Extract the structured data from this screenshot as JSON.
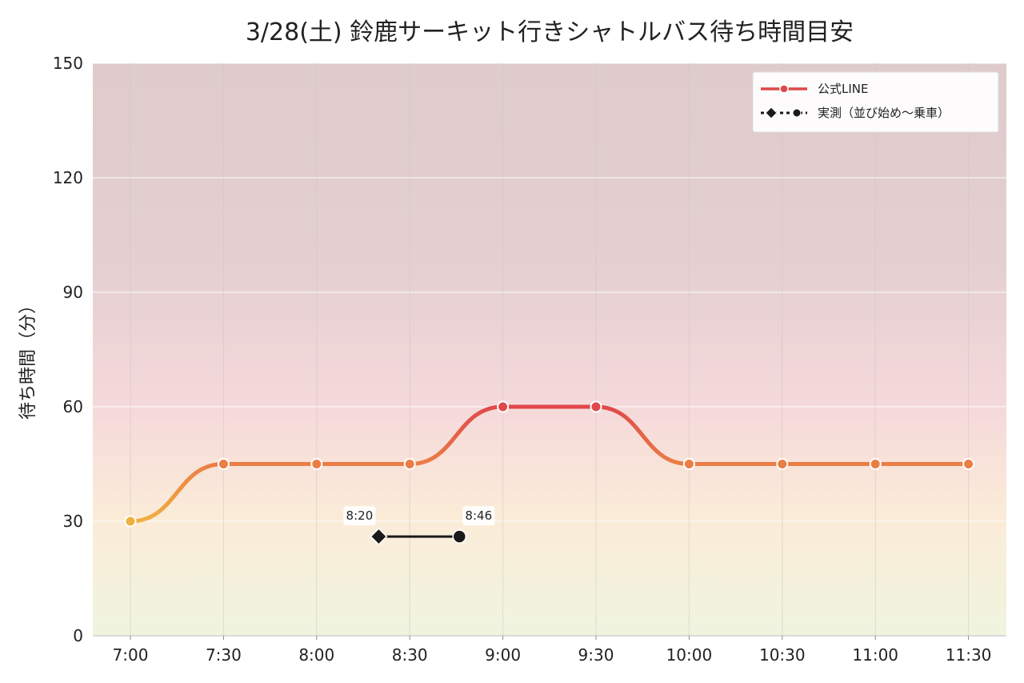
{
  "chart_data": {
    "type": "line",
    "title": "3/28(土) 鈴鹿サーキット行きシャトルバス待ち時間目安",
    "xlabel": "",
    "ylabel": "待ち時間（分）",
    "ylim": [
      0,
      150
    ],
    "yticks": [
      0,
      30,
      60,
      90,
      120,
      150
    ],
    "categories": [
      "7:00",
      "7:30",
      "8:00",
      "8:30",
      "9:00",
      "9:30",
      "10:00",
      "10:30",
      "11:00",
      "11:30"
    ],
    "grid": true,
    "legend_position": "top-right",
    "background": "vertical gradient: green (0) → yellow (~30) → pink (~60) → mauve (150)",
    "series": [
      {
        "name": "公式LINE",
        "style": "smooth line with circle markers",
        "values": [
          30,
          45,
          45,
          45,
          60,
          60,
          45,
          45,
          45,
          45
        ],
        "colors": {
          "low": "#f0b040",
          "mid": "#ea7e45",
          "high": "#e0484a"
        }
      },
      {
        "name": "実測（並び始め〜乗車）",
        "style": "segment from diamond (start) to circle (end)",
        "color": "#1a1a1a",
        "points": [
          {
            "time": "8:20",
            "value": 26,
            "label": "8:20",
            "marker": "diamond"
          },
          {
            "time": "8:46",
            "value": 26,
            "label": "8:46",
            "marker": "circle"
          }
        ]
      }
    ]
  }
}
